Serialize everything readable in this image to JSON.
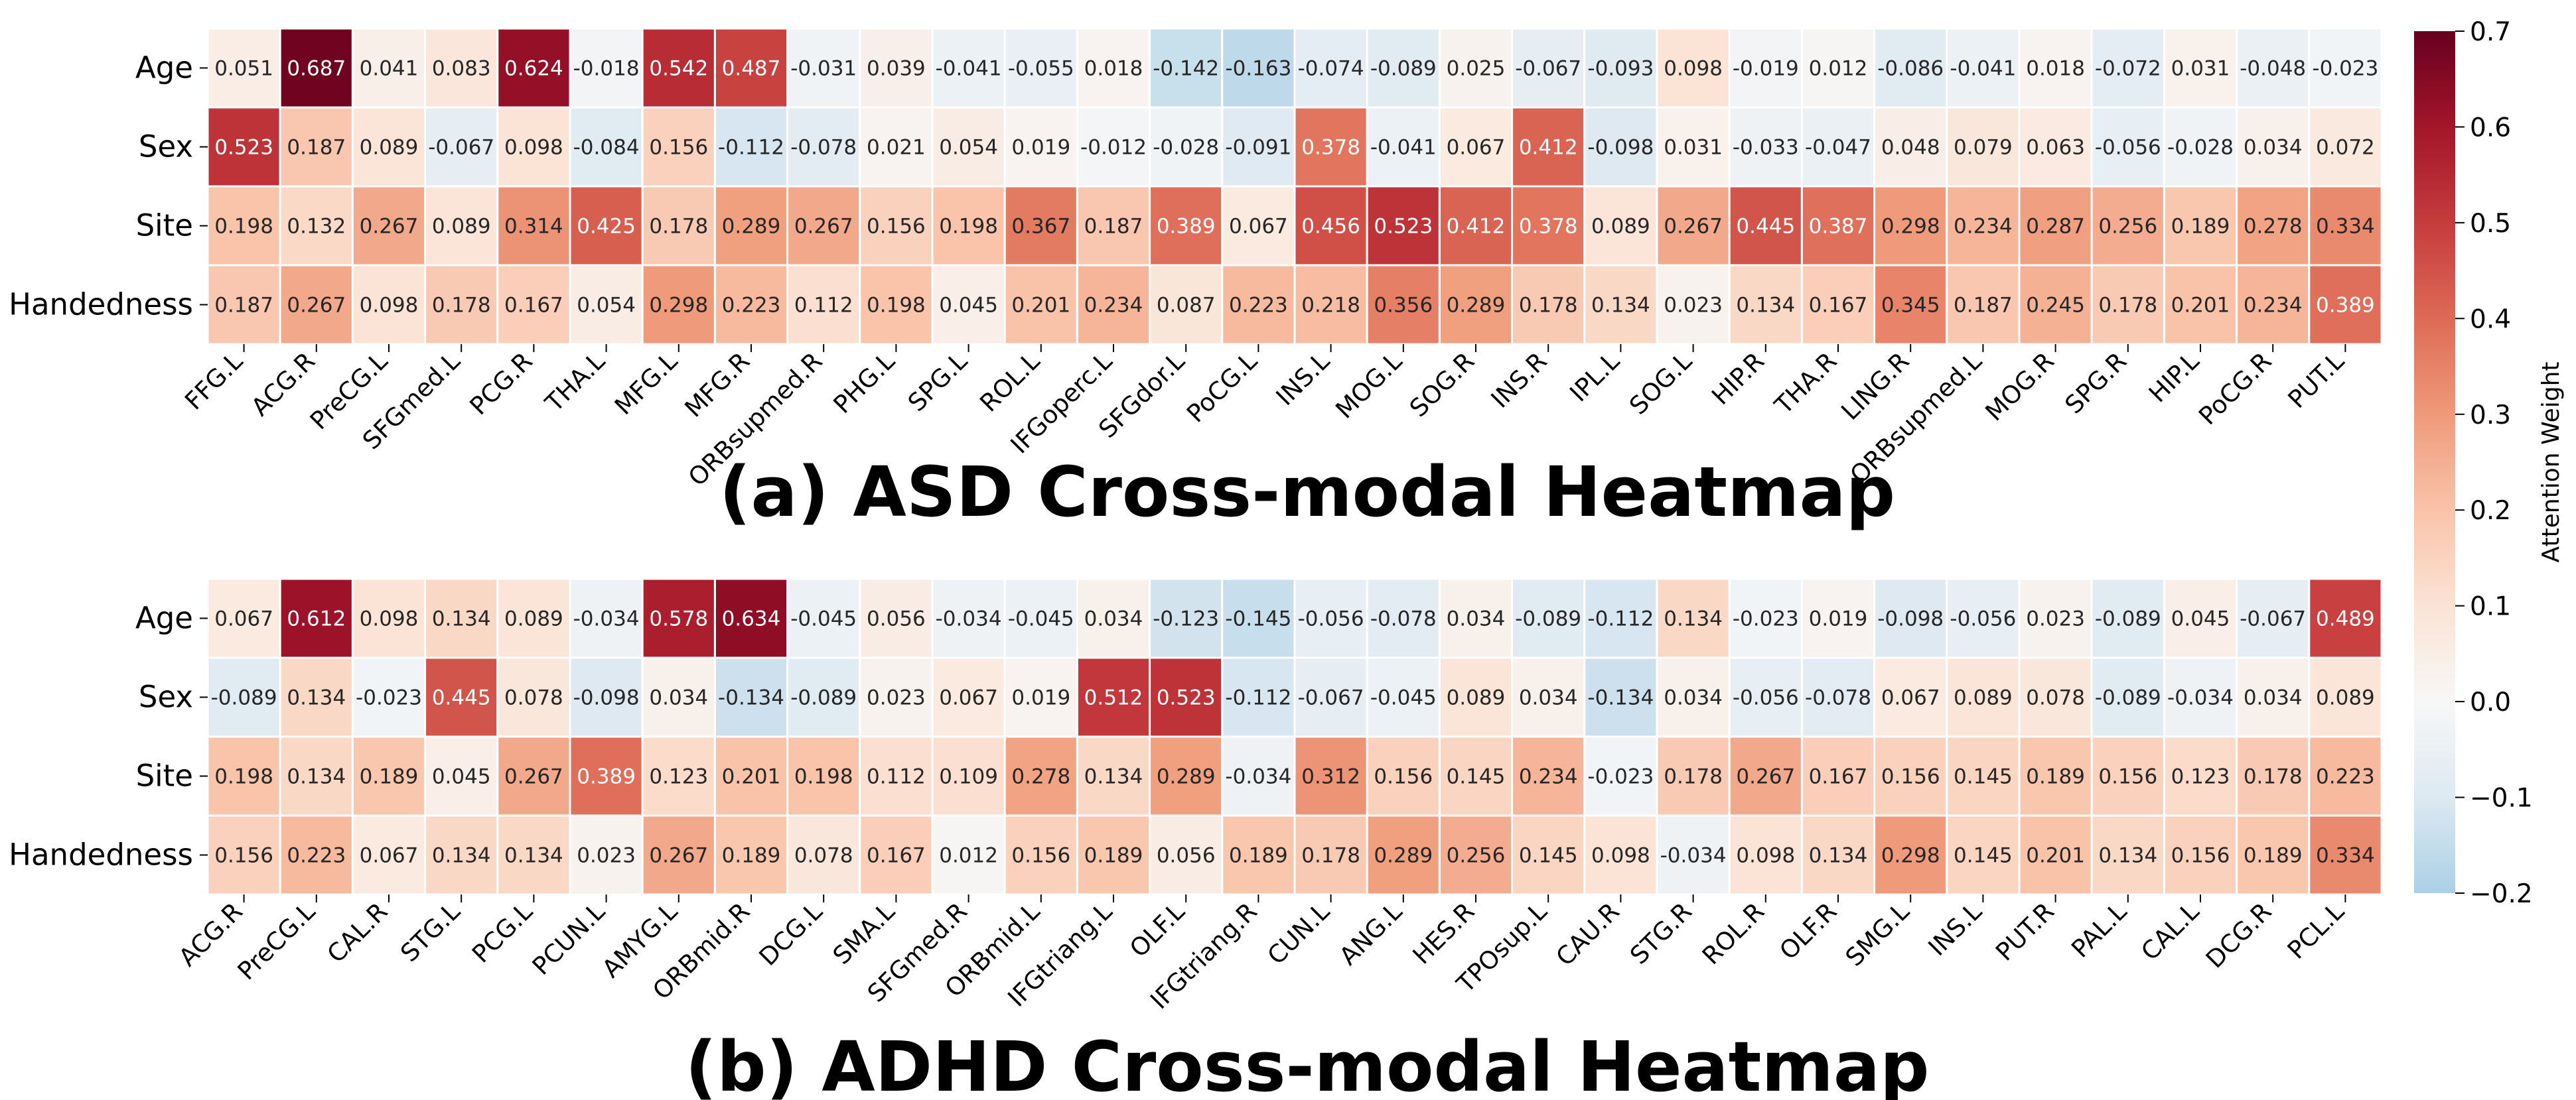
{
  "chart_data": [
    {
      "type": "heatmap",
      "title": "(a) ASD Cross-modal Heatmap",
      "rows": [
        "Age",
        "Sex",
        "Site",
        "Handedness"
      ],
      "columns": [
        "FFG.L",
        "ACG.R",
        "PreCG.L",
        "SFGmed.L",
        "PCG.R",
        "THA.L",
        "MFG.L",
        "MFG.R",
        "ORBsupmed.R",
        "PHG.L",
        "SPG.L",
        "ROL.L",
        "IFGoperc.L",
        "SFGdor.L",
        "PoCG.L",
        "INS.L",
        "MOG.L",
        "SOG.R",
        "INS.R",
        "IPL.L",
        "SOG.L",
        "HIP.R",
        "THA.R",
        "LING.R",
        "ORBsupmed.L",
        "MOG.R",
        "SPG.R",
        "HIP.L",
        "PoCG.R",
        "PUT.L"
      ],
      "values": [
        [
          "0.051",
          "0.687",
          "0.041",
          "0.083",
          "0.624",
          "-0.018",
          "0.542",
          "0.487",
          "-0.031",
          "0.039",
          "-0.041",
          "-0.055",
          "0.018",
          "-0.142",
          "-0.163",
          "-0.074",
          "-0.089",
          "0.025",
          "-0.067",
          "-0.093",
          "0.098",
          "-0.019",
          "0.012",
          "-0.086",
          "-0.041",
          "0.018",
          "-0.072",
          "0.031",
          "-0.048",
          "-0.023"
        ],
        [
          "0.523",
          "0.187",
          "0.089",
          "-0.067",
          "0.098",
          "-0.084",
          "0.156",
          "-0.112",
          "-0.078",
          "0.021",
          "0.054",
          "0.019",
          "-0.012",
          "-0.028",
          "-0.091",
          "0.378",
          "-0.041",
          "0.067",
          "0.412",
          "-0.098",
          "0.031",
          "-0.033",
          "-0.047",
          "0.048",
          "0.079",
          "0.063",
          "-0.056",
          "-0.028",
          "0.034",
          "0.072"
        ],
        [
          "0.198",
          "0.132",
          "0.267",
          "0.089",
          "0.314",
          "0.425",
          "0.178",
          "0.289",
          "0.267",
          "0.156",
          "0.198",
          "0.367",
          "0.187",
          "0.389",
          "0.067",
          "0.456",
          "0.523",
          "0.412",
          "0.378",
          "0.089",
          "0.267",
          "0.445",
          "0.387",
          "0.298",
          "0.234",
          "0.287",
          "0.256",
          "0.189",
          "0.278",
          "0.334"
        ],
        [
          "0.187",
          "0.267",
          "0.098",
          "0.178",
          "0.167",
          "0.054",
          "0.298",
          "0.223",
          "0.112",
          "0.198",
          "0.045",
          "0.201",
          "0.234",
          "0.087",
          "0.223",
          "0.218",
          "0.356",
          "0.289",
          "0.178",
          "0.134",
          "0.023",
          "0.134",
          "0.167",
          "0.345",
          "0.187",
          "0.245",
          "0.178",
          "0.201",
          "0.234",
          "0.389"
        ]
      ]
    },
    {
      "type": "heatmap",
      "title": "(b) ADHD Cross-modal Heatmap",
      "rows": [
        "Age",
        "Sex",
        "Site",
        "Handedness"
      ],
      "columns": [
        "ACG.R",
        "PreCG.L",
        "CAL.R",
        "STG.L",
        "PCG.L",
        "PCUN.L",
        "AMYG.L",
        "ORBmid.R",
        "DCG.L",
        "SMA.L",
        "SFGmed.R",
        "ORBmid.L",
        "IFGtriang.L",
        "OLF.L",
        "IFGtriang.R",
        "CUN.L",
        "ANG.L",
        "HES.R",
        "TPOsup.L",
        "CAU.R",
        "STG.R",
        "ROL.R",
        "OLF.R",
        "SMG.L",
        "INS.L",
        "PUT.R",
        "PAL.L",
        "CAL.L",
        "DCG.R",
        "PCL.L"
      ],
      "values": [
        [
          "0.067",
          "0.612",
          "0.098",
          "0.134",
          "0.089",
          "-0.034",
          "0.578",
          "0.634",
          "-0.045",
          "0.056",
          "-0.034",
          "-0.045",
          "0.034",
          "-0.123",
          "-0.145",
          "-0.056",
          "-0.078",
          "0.034",
          "-0.089",
          "-0.112",
          "0.134",
          "-0.023",
          "0.019",
          "-0.098",
          "-0.056",
          "0.023",
          "-0.089",
          "0.045",
          "-0.067",
          "0.489"
        ],
        [
          "-0.089",
          "0.134",
          "-0.023",
          "0.445",
          "0.078",
          "-0.098",
          "0.034",
          "-0.134",
          "-0.089",
          "0.023",
          "0.067",
          "0.019",
          "0.512",
          "0.523",
          "-0.112",
          "-0.067",
          "-0.045",
          "0.089",
          "0.034",
          "-0.134",
          "0.034",
          "-0.056",
          "-0.078",
          "0.067",
          "0.089",
          "0.078",
          "-0.089",
          "-0.034",
          "0.034",
          "0.089"
        ],
        [
          "0.198",
          "0.134",
          "0.189",
          "0.045",
          "0.267",
          "0.389",
          "0.123",
          "0.201",
          "0.198",
          "0.112",
          "0.109",
          "0.278",
          "0.134",
          "0.289",
          "-0.034",
          "0.312",
          "0.156",
          "0.145",
          "0.234",
          "-0.023",
          "0.178",
          "0.267",
          "0.167",
          "0.156",
          "0.145",
          "0.189",
          "0.156",
          "0.123",
          "0.178",
          "0.223"
        ],
        [
          "0.156",
          "0.223",
          "0.067",
          "0.134",
          "0.134",
          "0.023",
          "0.267",
          "0.189",
          "0.078",
          "0.167",
          "0.012",
          "0.156",
          "0.189",
          "0.056",
          "0.189",
          "0.178",
          "0.289",
          "0.256",
          "0.145",
          "0.098",
          "-0.034",
          "0.098",
          "0.134",
          "0.298",
          "0.145",
          "0.201",
          "0.134",
          "0.156",
          "0.189",
          "0.334"
        ]
      ]
    }
  ],
  "colorbar": {
    "label": "Attention Weight",
    "range": [
      -0.2,
      0.7
    ],
    "ticks": [
      "0.7",
      "0.6",
      "0.5",
      "0.4",
      "0.3",
      "0.2",
      "0.1",
      "0.0",
      "−0.1",
      "−0.2"
    ],
    "colormap": "RdBu_r"
  }
}
